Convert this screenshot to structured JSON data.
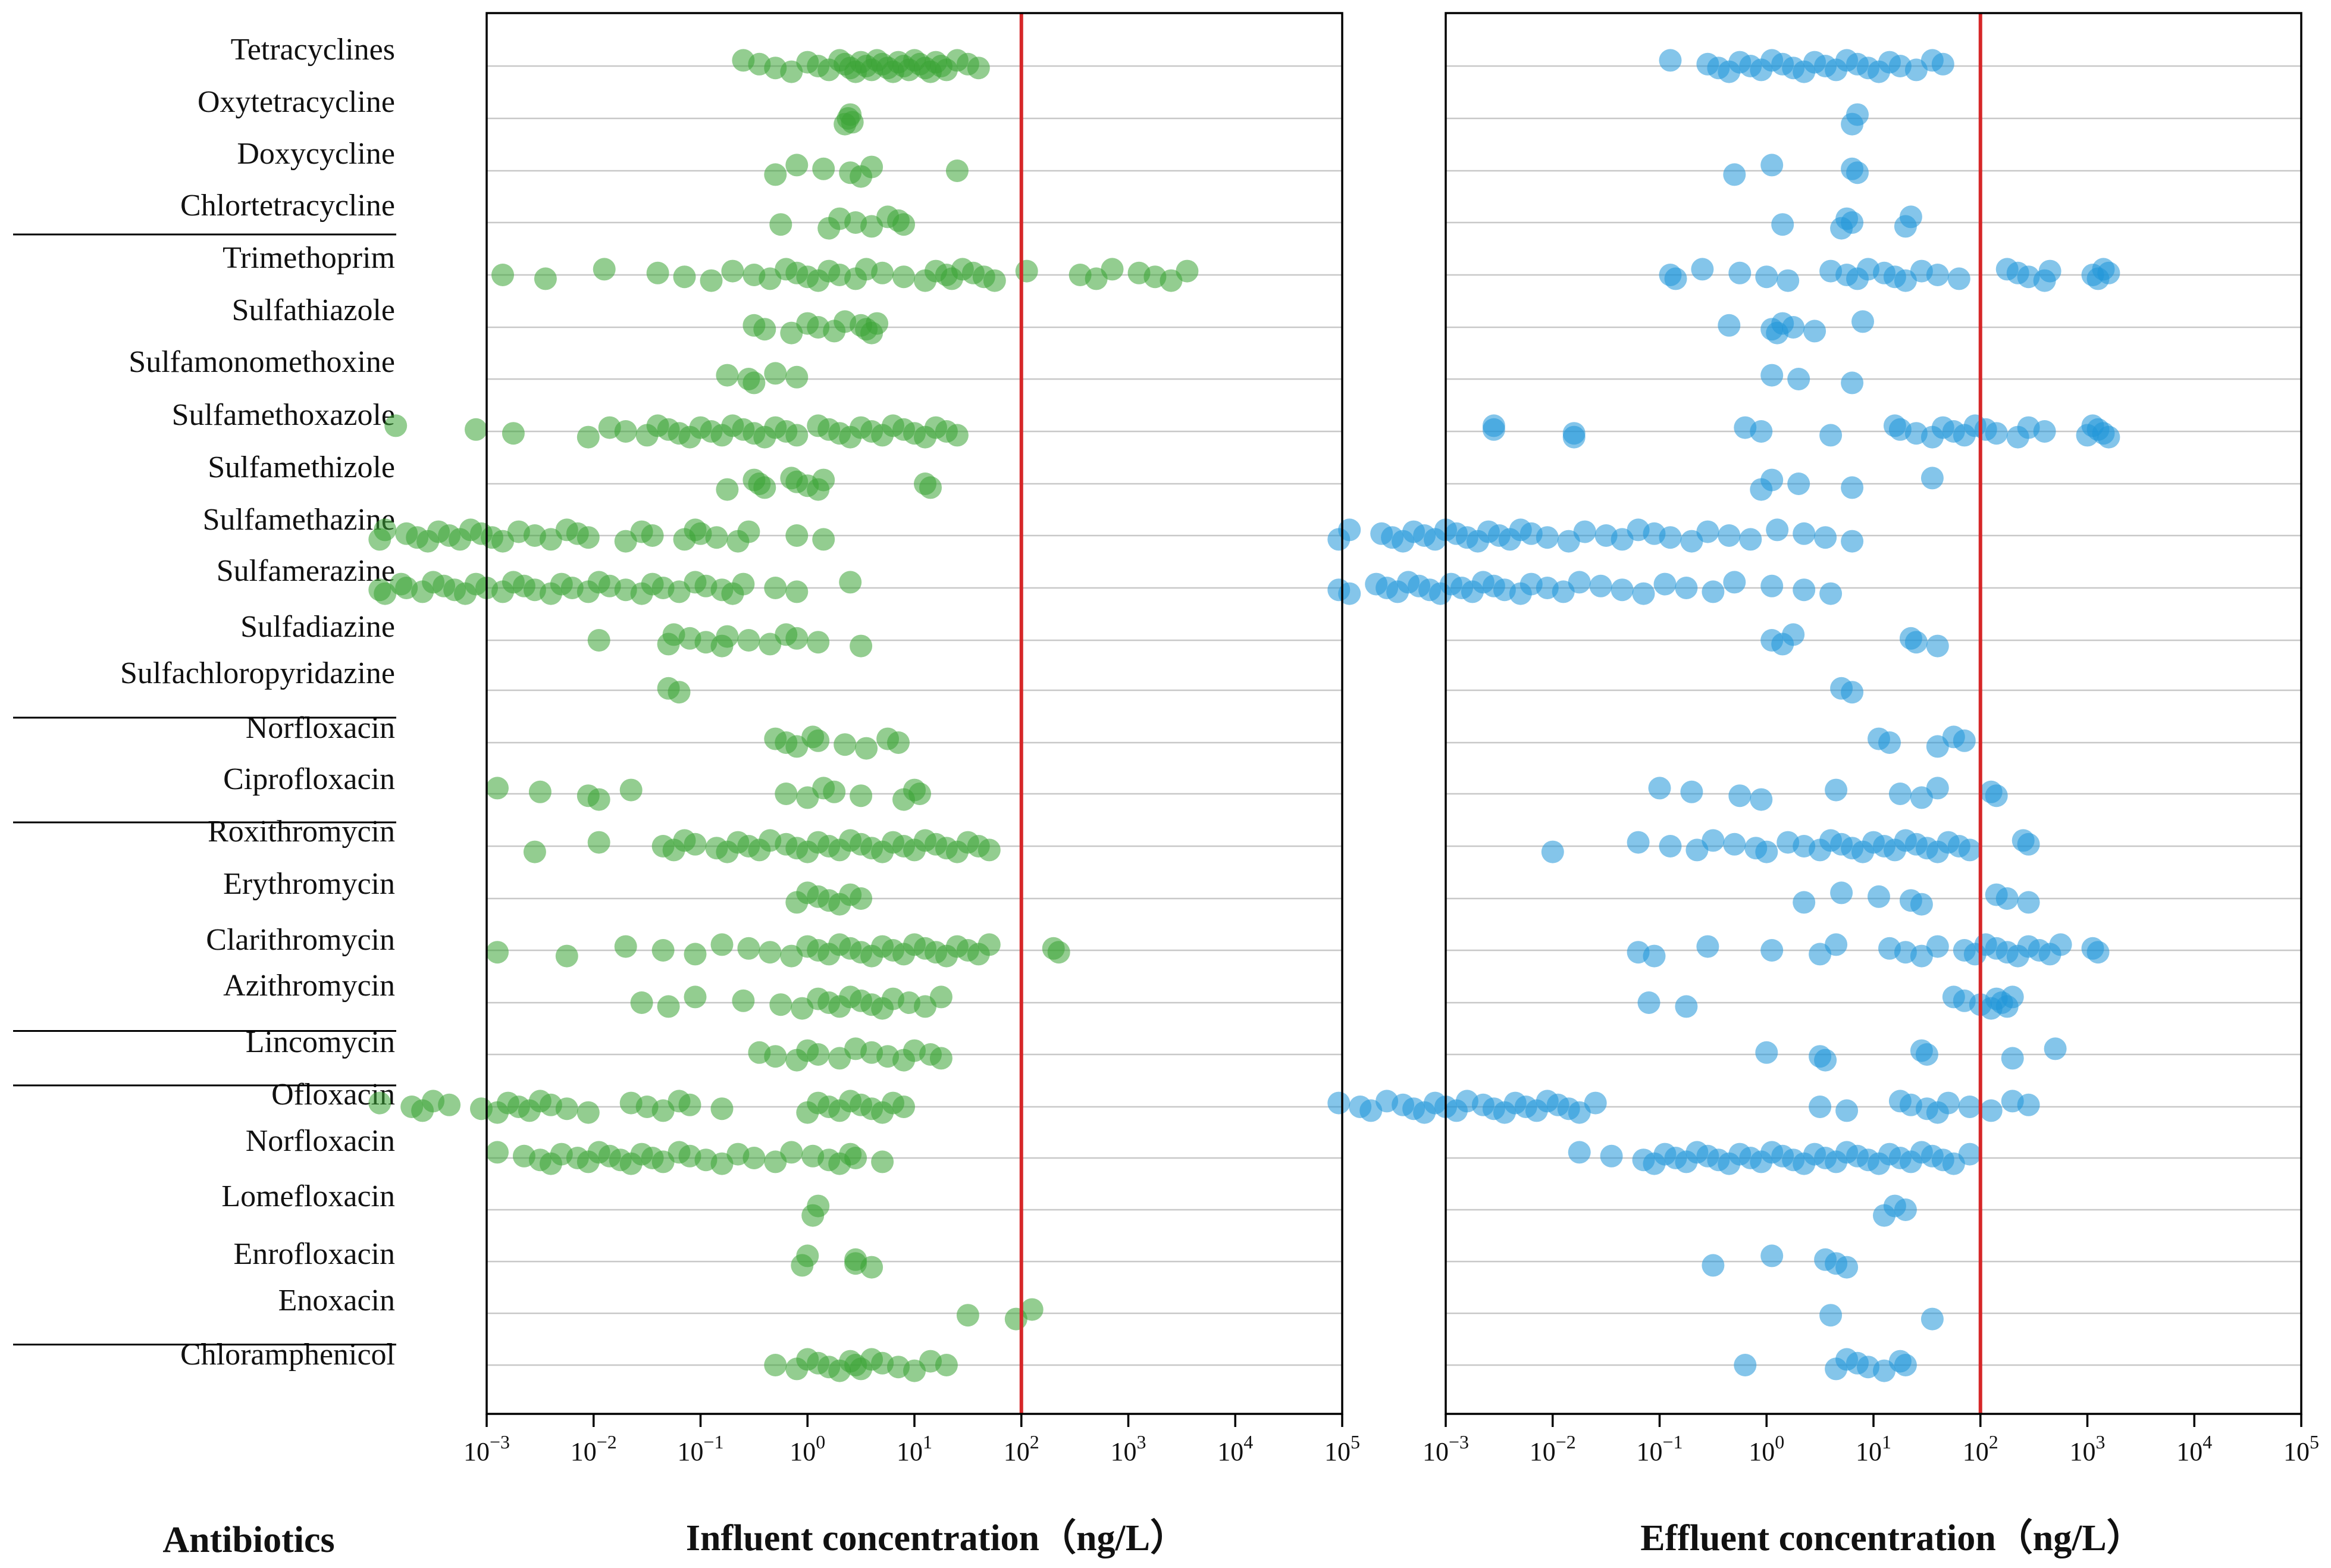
{
  "chart_data": {
    "type": "scatter",
    "x_scale": "log10",
    "xlim": [
      0.001,
      100000
    ],
    "threshold_ng_per_L": 100,
    "threshold_color": "#d62728",
    "influent_color": "#3aa435",
    "effluent_color": "#1f95d8",
    "y_title": "Antibiotics",
    "x_ticks": [
      {
        "base": "10",
        "exp": "−3"
      },
      {
        "base": "10",
        "exp": "−2"
      },
      {
        "base": "10",
        "exp": "−1"
      },
      {
        "base": "10",
        "exp": "0"
      },
      {
        "base": "10",
        "exp": "1"
      },
      {
        "base": "10",
        "exp": "2"
      },
      {
        "base": "10",
        "exp": "3"
      },
      {
        "base": "10",
        "exp": "4"
      },
      {
        "base": "10",
        "exp": "5"
      }
    ],
    "categories": [
      "Tetracyclines",
      "Oxytetracycline",
      "Doxycycline",
      "Chlortetracycline",
      "Trimethoprim",
      "Sulfathiazole",
      "Sulfamonomethoxine",
      "Sulfamethoxazole",
      "Sulfamethizole",
      "Sulfamethazine",
      "Sulfamerazine",
      "Sulfadiazine",
      "Sulfachloropyridazine",
      "Norfloxacin",
      "Ciprofloxacin",
      "Roxithromycin",
      "Erythromycin",
      "Clarithromycin",
      "Azithromycin",
      "Lincomycin",
      "Ofloxacin",
      "Norfloxacin",
      "Lomefloxacin",
      "Enrofloxacin",
      "Enoxacin",
      "Chloramphenicol"
    ],
    "group_dividers_after": [
      3,
      12,
      14,
      18,
      19,
      24
    ],
    "panels": [
      {
        "name": "influent",
        "xlabel": "Influent concentration（ng/L）",
        "log_values": [
          [
            -0.6,
            -0.45,
            -0.3,
            -0.15,
            0,
            0.1,
            0.2,
            0.3,
            0.35,
            0.4,
            0.45,
            0.5,
            0.55,
            0.6,
            0.65,
            0.7,
            0.75,
            0.8,
            0.85,
            0.9,
            0.95,
            1.0,
            1.05,
            1.1,
            1.15,
            1.2,
            1.25,
            1.3,
            1.4,
            1.5,
            1.6
          ],
          [
            0.35,
            0.4,
            0.38,
            0.42
          ],
          [
            -0.3,
            -0.1,
            0.15,
            0.4,
            0.5,
            0.6,
            1.4
          ],
          [
            -0.25,
            0.2,
            0.3,
            0.45,
            0.6,
            0.75,
            0.85,
            0.9
          ],
          [
            -2.85,
            -2.45,
            -1.9,
            -1.4,
            -1.15,
            -0.9,
            -0.7,
            -0.5,
            -0.35,
            -0.2,
            -0.1,
            0,
            0.1,
            0.2,
            0.3,
            0.45,
            0.55,
            0.7,
            0.9,
            1.1,
            1.2,
            1.3,
            1.35,
            1.45,
            1.55,
            1.65,
            1.75,
            2.05,
            2.55,
            2.7,
            2.85,
            3.1,
            3.25,
            3.4,
            3.55
          ],
          [
            -0.5,
            -0.4,
            -0.15,
            0,
            0.1,
            0.25,
            0.35,
            0.5,
            0.55,
            0.6,
            0.65
          ],
          [
            -0.75,
            -0.55,
            -0.5,
            -0.3,
            -0.1
          ],
          [
            -3.85,
            -3.1,
            -2.75,
            -2.05,
            -1.85,
            -1.7,
            -1.5,
            -1.4,
            -1.3,
            -1.2,
            -1.1,
            -1.0,
            -0.9,
            -0.8,
            -0.7,
            -0.6,
            -0.5,
            -0.4,
            -0.3,
            -0.2,
            -0.1,
            0.1,
            0.2,
            0.3,
            0.4,
            0.5,
            0.6,
            0.7,
            0.8,
            0.9,
            1.0,
            1.1,
            1.2,
            1.3,
            1.4
          ],
          [
            -0.75,
            -0.5,
            -0.45,
            -0.4,
            -0.15,
            -0.1,
            0,
            0.1,
            0.15,
            1.1,
            1.15
          ],
          [
            -4,
            -3.95,
            -3.75,
            -3.65,
            -3.55,
            -3.45,
            -3.35,
            -3.25,
            -3.15,
            -3.05,
            -2.95,
            -2.85,
            -2.7,
            -2.55,
            -2.4,
            -2.25,
            -2.15,
            -2.05,
            -1.7,
            -1.55,
            -1.45,
            -1.15,
            -1.05,
            -1.0,
            -0.85,
            -0.65,
            -0.55,
            -0.1,
            0.15
          ],
          [
            -4,
            -3.95,
            -3.8,
            -3.75,
            -3.6,
            -3.5,
            -3.4,
            -3.3,
            -3.2,
            -3.1,
            -3.0,
            -2.85,
            -2.75,
            -2.65,
            -2.55,
            -2.4,
            -2.3,
            -2.2,
            -2.05,
            -1.95,
            -1.85,
            -1.7,
            -1.55,
            -1.45,
            -1.35,
            -1.2,
            -1.05,
            -0.95,
            -0.8,
            -0.7,
            -0.6,
            -0.3,
            -0.1,
            0.4
          ],
          [
            -1.95,
            -1.3,
            -1.25,
            -1.1,
            -0.95,
            -0.8,
            -0.75,
            -0.55,
            -0.35,
            -0.2,
            -0.1,
            0.1,
            0.5
          ],
          [
            -1.3,
            -1.2
          ],
          [
            -0.3,
            -0.2,
            -0.1,
            0.05,
            0.1,
            0.35,
            0.55,
            0.75,
            0.85
          ],
          [
            -2.9,
            -2.5,
            -2.05,
            -1.95,
            -1.65,
            -0.2,
            0,
            0.15,
            0.25,
            0.5,
            0.9,
            1.0,
            1.05
          ],
          [
            -2.55,
            -1.95,
            -1.35,
            -1.25,
            -1.15,
            -1.05,
            -0.85,
            -0.75,
            -0.65,
            -0.55,
            -0.45,
            -0.35,
            -0.2,
            -0.1,
            0,
            0.1,
            0.2,
            0.3,
            0.4,
            0.5,
            0.6,
            0.7,
            0.8,
            0.9,
            1.0,
            1.1,
            1.2,
            1.3,
            1.4,
            1.5,
            1.6,
            1.7
          ],
          [
            -0.1,
            0,
            0.1,
            0.2,
            0.3,
            0.4,
            0.5
          ],
          [
            -2.9,
            -2.25,
            -1.7,
            -1.35,
            -1.05,
            -0.8,
            -0.55,
            -0.35,
            -0.15,
            0,
            0.1,
            0.2,
            0.3,
            0.4,
            0.5,
            0.6,
            0.7,
            0.8,
            0.9,
            1.0,
            1.1,
            1.2,
            1.3,
            1.4,
            1.5,
            1.6,
            1.7,
            2.3,
            2.35
          ],
          [
            -1.55,
            -1.3,
            -1.05,
            -0.6,
            -0.25,
            -0.05,
            0.1,
            0.2,
            0.3,
            0.4,
            0.5,
            0.6,
            0.7,
            0.8,
            0.95,
            1.1,
            1.25
          ],
          [
            -0.45,
            -0.3,
            -0.1,
            0,
            0.1,
            0.3,
            0.45,
            0.6,
            0.75,
            0.9,
            1.0,
            1.15,
            1.25
          ],
          [
            -4,
            -3.7,
            -3.6,
            -3.5,
            -3.35,
            -3.05,
            -2.9,
            -2.8,
            -2.7,
            -2.6,
            -2.5,
            -2.4,
            -2.25,
            -2.05,
            -1.65,
            -1.5,
            -1.35,
            -1.2,
            -1.1,
            -0.8,
            0,
            0.1,
            0.2,
            0.3,
            0.4,
            0.5,
            0.6,
            0.7,
            0.8,
            0.9
          ],
          [
            -2.9,
            -2.65,
            -2.5,
            -2.4,
            -2.3,
            -2.15,
            -2.05,
            -1.95,
            -1.85,
            -1.75,
            -1.65,
            -1.55,
            -1.45,
            -1.35,
            -1.2,
            -1.1,
            -0.95,
            -0.8,
            -0.65,
            -0.5,
            -0.3,
            -0.15,
            0.05,
            0.2,
            0.3,
            0.4,
            0.45,
            0.7
          ],
          [
            0.05,
            0.1
          ],
          [
            -0.05,
            0,
            0.45,
            0.45,
            0.6
          ],
          [
            1.5,
            1.95,
            2.1
          ],
          [
            -0.3,
            -0.1,
            0,
            0.1,
            0.2,
            0.3,
            0.4,
            0.45,
            0.5,
            0.6,
            0.7,
            0.85,
            1.0,
            1.15,
            1.3
          ]
        ]
      },
      {
        "name": "effluent",
        "xlabel": "Effluent concentration（ng/L）",
        "log_values": [
          [
            -0.9,
            -0.55,
            -0.45,
            -0.35,
            -0.25,
            -0.15,
            -0.05,
            0.05,
            0.15,
            0.25,
            0.35,
            0.45,
            0.55,
            0.65,
            0.75,
            0.85,
            0.95,
            1.05,
            1.15,
            1.25,
            1.4,
            1.55,
            1.65
          ],
          [
            0.8,
            0.85
          ],
          [
            -0.3,
            0.05,
            0.8,
            0.85
          ],
          [
            0.15,
            0.7,
            0.75,
            0.8,
            1.3,
            1.35
          ],
          [
            -0.9,
            -0.85,
            -0.6,
            -0.25,
            0,
            0.2,
            0.6,
            0.75,
            0.85,
            0.95,
            1.1,
            1.2,
            1.3,
            1.45,
            1.6,
            1.8,
            2.25,
            2.35,
            2.45,
            2.6,
            2.65,
            3.05,
            3.1,
            3.15,
            3.2
          ],
          [
            -0.35,
            0.05,
            0.1,
            0.15,
            0.25,
            0.45,
            0.9
          ],
          [
            0.05,
            0.3,
            0.8
          ],
          [
            -2.55,
            -2.55,
            -1.8,
            -1.8,
            -0.2,
            -0.05,
            0.6,
            1.2,
            1.25,
            1.4,
            1.55,
            1.65,
            1.75,
            1.85,
            1.95,
            2.05,
            2.15,
            2.35,
            2.45,
            2.6,
            3.0,
            3.05,
            3.1,
            3.15,
            3.2
          ],
          [
            -0.05,
            0.05,
            0.3,
            0.8,
            1.55
          ],
          [
            -4,
            -3.9,
            -3.6,
            -3.5,
            -3.4,
            -3.3,
            -3.2,
            -3.1,
            -3.0,
            -2.9,
            -2.8,
            -2.7,
            -2.6,
            -2.5,
            -2.4,
            -2.3,
            -2.2,
            -2.05,
            -1.85,
            -1.7,
            -1.5,
            -1.35,
            -1.2,
            -1.05,
            -0.9,
            -0.7,
            -0.55,
            -0.35,
            -0.15,
            0.1,
            0.35,
            0.55,
            0.8
          ],
          [
            -4,
            -3.9,
            -3.65,
            -3.55,
            -3.45,
            -3.35,
            -3.25,
            -3.15,
            -3.05,
            -2.95,
            -2.85,
            -2.75,
            -2.65,
            -2.55,
            -2.45,
            -2.3,
            -2.2,
            -2.05,
            -1.9,
            -1.75,
            -1.55,
            -1.35,
            -1.15,
            -0.95,
            -0.75,
            -0.5,
            -0.3,
            0.05,
            0.35,
            0.6
          ],
          [
            0.05,
            0.15,
            0.25,
            1.35,
            1.4,
            1.6
          ],
          [
            0.7,
            0.8
          ],
          [
            1.05,
            1.15,
            1.6,
            1.75,
            1.85
          ],
          [
            -1,
            -0.7,
            -0.25,
            -0.05,
            0.65,
            1.25,
            1.45,
            1.6,
            2.1,
            2.15
          ],
          [
            -2,
            -1.2,
            -0.9,
            -0.65,
            -0.5,
            -0.3,
            -0.1,
            0,
            0.2,
            0.35,
            0.5,
            0.6,
            0.7,
            0.8,
            0.9,
            1.0,
            1.1,
            1.2,
            1.3,
            1.4,
            1.5,
            1.6,
            1.7,
            1.8,
            1.9,
            2.4,
            2.45
          ],
          [
            0.35,
            0.7,
            1.05,
            1.35,
            1.45,
            2.15,
            2.25,
            2.45
          ],
          [
            -1.2,
            -1.05,
            -0.55,
            0.05,
            0.5,
            0.65,
            1.15,
            1.3,
            1.45,
            1.6,
            1.85,
            1.95,
            2.05,
            2.15,
            2.25,
            2.35,
            2.45,
            2.55,
            2.65,
            2.75,
            3.05,
            3.1
          ],
          [
            -1.1,
            -0.75,
            1.75,
            1.85,
            2.0,
            2.1,
            2.15,
            2.2,
            2.25,
            2.3
          ],
          [
            0,
            0.5,
            0.55,
            1.45,
            1.5,
            2.3,
            2.7
          ],
          [
            -4,
            -3.8,
            -3.7,
            -3.55,
            -3.4,
            -3.3,
            -3.2,
            -3.1,
            -3.0,
            -2.9,
            -2.8,
            -2.65,
            -2.55,
            -2.45,
            -2.35,
            -2.25,
            -2.15,
            -2.05,
            -1.95,
            -1.85,
            -1.75,
            -1.6,
            0.5,
            0.75,
            1.25,
            1.35,
            1.5,
            1.6,
            1.7,
            1.9,
            2.1,
            2.3,
            2.45
          ],
          [
            -1.75,
            -1.45,
            -1.15,
            -1.05,
            -0.95,
            -0.85,
            -0.75,
            -0.65,
            -0.55,
            -0.45,
            -0.35,
            -0.25,
            -0.15,
            -0.05,
            0.05,
            0.15,
            0.25,
            0.35,
            0.45,
            0.55,
            0.65,
            0.75,
            0.85,
            0.95,
            1.05,
            1.15,
            1.25,
            1.35,
            1.45,
            1.55,
            1.65,
            1.75,
            1.9
          ],
          [
            1.1,
            1.2,
            1.3
          ],
          [
            -0.5,
            0.05,
            0.55,
            0.65,
            0.75
          ],
          [
            0.6,
            1.55
          ],
          [
            -0.2,
            0.65,
            0.75,
            0.85,
            0.95,
            1.1,
            1.25,
            1.3
          ]
        ]
      }
    ]
  }
}
